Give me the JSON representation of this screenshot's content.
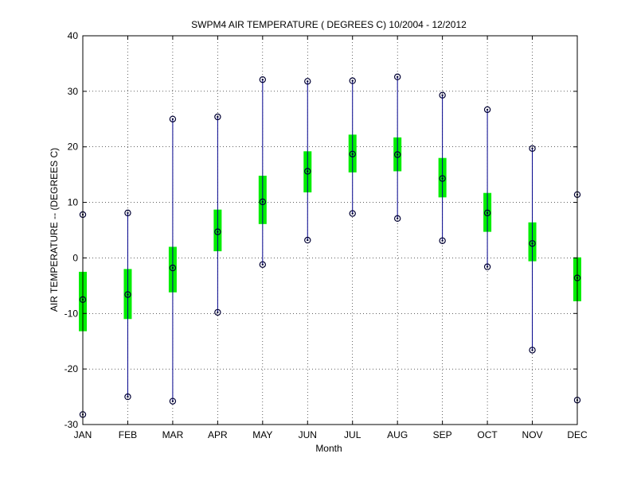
{
  "chart_data": {
    "type": "box",
    "title": "SWPM4  AIR TEMPERATURE ( DEGREES C) 10/2004 - 12/2012",
    "xlabel": "Month",
    "ylabel": "AIR TEMPERATURE -- (DEGREES C)",
    "ylim": [
      -30,
      40
    ],
    "yticks": [
      "-30",
      "-20",
      "-10",
      "0",
      "10",
      "20",
      "30",
      "40"
    ],
    "grid": true,
    "categories": [
      "JAN",
      "FEB",
      "MAR",
      "APR",
      "MAY",
      "JUN",
      "JUL",
      "AUG",
      "SEP",
      "OCT",
      "NOV",
      "DEC"
    ],
    "min": [
      -28.2,
      -25.0,
      -25.8,
      -9.8,
      -1.2,
      3.2,
      8.0,
      7.1,
      3.1,
      -1.6,
      -16.6,
      -25.6
    ],
    "q1": [
      -13.2,
      -11.0,
      -6.2,
      1.2,
      6.1,
      11.8,
      15.4,
      15.6,
      10.9,
      4.7,
      -0.6,
      -7.8
    ],
    "median": [
      -7.5,
      -6.6,
      -1.8,
      4.7,
      10.1,
      15.6,
      18.7,
      18.6,
      14.3,
      8.1,
      2.6,
      -3.6
    ],
    "q3": [
      -2.5,
      -2.0,
      2.0,
      8.7,
      14.8,
      19.2,
      22.2,
      21.7,
      18.0,
      11.7,
      6.4,
      0.1
    ],
    "max": [
      7.8,
      8.1,
      25.0,
      25.4,
      32.1,
      31.8,
      31.9,
      32.6,
      29.3,
      26.7,
      19.7,
      11.4
    ],
    "colors": {
      "whisker": "#00008b",
      "box": "#00ee00",
      "marker": "#000033",
      "grid": "#000000"
    }
  }
}
